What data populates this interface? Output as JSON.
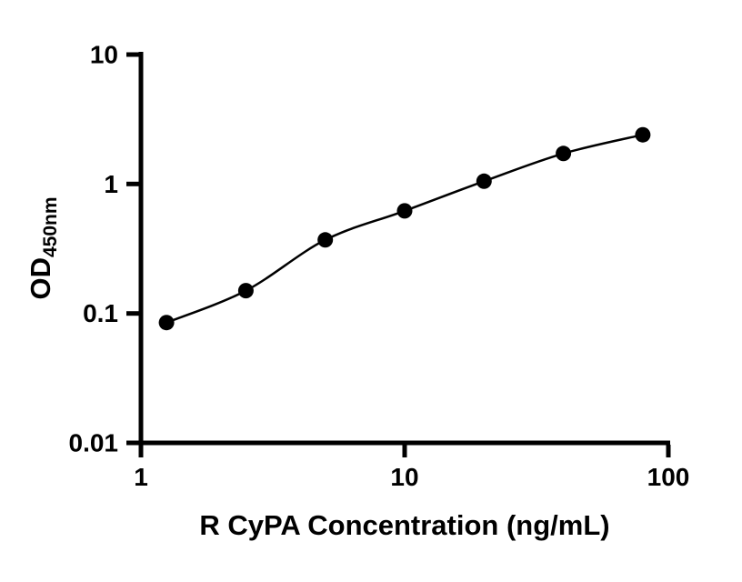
{
  "chart_data": {
    "type": "scatter",
    "title": "",
    "xlabel": "R CyPA Concentration (ng/mL)",
    "ylabel_main": "OD",
    "ylabel_sub": "450nm",
    "x": [
      1.25,
      2.5,
      5,
      10,
      20,
      40,
      80
    ],
    "y": [
      0.085,
      0.15,
      0.37,
      0.62,
      1.05,
      1.72,
      2.4
    ],
    "x_scale": "log",
    "y_scale": "log",
    "xlim": [
      1,
      100
    ],
    "ylim": [
      0.01,
      10
    ],
    "x_ticks": [
      1,
      10,
      100
    ],
    "x_tick_labels": [
      "1",
      "10",
      "100"
    ],
    "y_ticks": [
      0.01,
      0.1,
      1,
      10
    ],
    "y_tick_labels": [
      "0.01",
      "0.1",
      "1",
      "10"
    ],
    "marker_color": "#000000",
    "line_color": "#000000",
    "background": "#ffffff",
    "grid": "off",
    "legend": "none"
  }
}
